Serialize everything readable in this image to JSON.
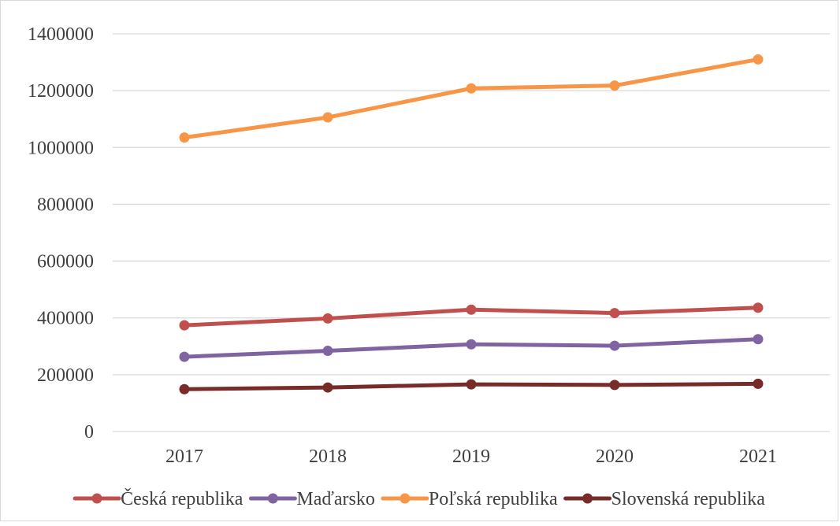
{
  "chart_data": {
    "type": "line",
    "title": "",
    "xlabel": "",
    "ylabel": "",
    "categories": [
      "2017",
      "2018",
      "2019",
      "2020",
      "2021"
    ],
    "ylim": [
      0,
      1400000
    ],
    "yticks": [
      0,
      200000,
      400000,
      600000,
      800000,
      1000000,
      1200000,
      1400000
    ],
    "ytick_labels": [
      "0",
      "200000",
      "400000",
      "600000",
      "800000",
      "1000000",
      "1200000",
      "1400000"
    ],
    "grid": true,
    "legend": "bottom",
    "series": [
      {
        "name": "Česká republika",
        "color": "#c0504d",
        "values": [
          374000,
          398000,
          429000,
          417000,
          436000
        ]
      },
      {
        "name": "Maďarsko",
        "color": "#8064a2",
        "values": [
          263000,
          284000,
          307000,
          302000,
          325000
        ]
      },
      {
        "name": "Poľská republika",
        "color": "#f79646",
        "values": [
          1035000,
          1106000,
          1208000,
          1218000,
          1310000
        ]
      },
      {
        "name": "Slovenská republika",
        "color": "#772c2a",
        "values": [
          149000,
          155000,
          166000,
          164000,
          168000
        ]
      }
    ]
  }
}
